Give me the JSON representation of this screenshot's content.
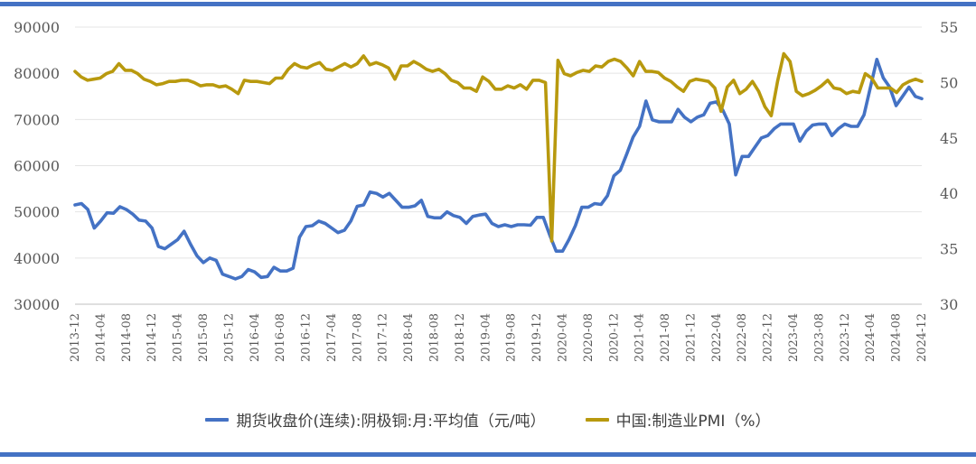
{
  "chart_data": {
    "type": "line",
    "title": "",
    "xlabel": "",
    "x_tick_labels": [
      "2013-12",
      "2014-04",
      "2014-08",
      "2014-12",
      "2015-04",
      "2015-08",
      "2015-12",
      "2016-04",
      "2016-08",
      "2016-12",
      "2017-04",
      "2017-08",
      "2017-12",
      "2018-04",
      "2018-08",
      "2018-12",
      "2019-04",
      "2019-08",
      "2019-12",
      "2020-04",
      "2020-08",
      "2020-12",
      "2021-04",
      "2021-08",
      "2021-12",
      "2022-04",
      "2022-08",
      "2022-12",
      "2023-04",
      "2023-08",
      "2023-12",
      "2024-04",
      "2024-08",
      "2024-12"
    ],
    "x_start": "2013-12",
    "x_end": "2024-12",
    "y_left": {
      "lim": [
        30000,
        90000
      ],
      "ticks": [
        "30000",
        "40000",
        "50000",
        "60000",
        "70000",
        "80000",
        "90000"
      ]
    },
    "y_right": {
      "lim": [
        30,
        55
      ],
      "ticks": [
        "30",
        "35",
        "40",
        "45",
        "50",
        "55"
      ]
    },
    "grid": "horizontal",
    "legend_position": "bottom",
    "series": [
      {
        "name": "期货收盘价(连续):阴极铜:月:平均值（元/吨）",
        "axis": "left",
        "color": "#4472c4",
        "values": [
          51500,
          51800,
          50500,
          46500,
          48000,
          49800,
          49700,
          51100,
          50500,
          49500,
          48200,
          48000,
          46500,
          42500,
          42000,
          43000,
          44000,
          45800,
          43000,
          40500,
          39000,
          40000,
          39500,
          36500,
          36000,
          35500,
          36000,
          37500,
          37000,
          35800,
          36000,
          38000,
          37200,
          37200,
          37800,
          44500,
          46800,
          47000,
          48000,
          47500,
          46500,
          45500,
          46000,
          48000,
          51200,
          51500,
          54300,
          54000,
          53200,
          54000,
          52500,
          51000,
          51000,
          51300,
          52500,
          49000,
          48700,
          48700,
          50000,
          49200,
          48800,
          47500,
          49000,
          49300,
          49500,
          47500,
          46800,
          47200,
          46800,
          47200,
          47200,
          47100,
          48800,
          48800,
          45000,
          41500,
          41500,
          44000,
          47000,
          51000,
          51000,
          51800,
          51600,
          53500,
          57800,
          59000,
          62500,
          66200,
          68500,
          74000,
          69900,
          69500,
          69500,
          69500,
          72200,
          70500,
          69500,
          70500,
          71000,
          73500,
          73800,
          72000,
          69000,
          58000,
          62000,
          62000,
          64000,
          66000,
          66500,
          68000,
          69000,
          69000,
          69000,
          65300,
          67500,
          68800,
          69000,
          69000,
          66500,
          68000,
          69000,
          68500,
          68500,
          71000,
          77000,
          83000,
          79000,
          77000,
          73000,
          75000,
          77000,
          75000,
          74500
        ]
      },
      {
        "name": "中国:制造业PMI（%）",
        "axis": "right",
        "color": "#b8990e",
        "values": [
          51.0,
          50.5,
          50.2,
          50.3,
          50.4,
          50.8,
          51.0,
          51.7,
          51.1,
          51.1,
          50.8,
          50.3,
          50.1,
          49.8,
          49.9,
          50.1,
          50.1,
          50.2,
          50.2,
          50.0,
          49.7,
          49.8,
          49.8,
          49.6,
          49.7,
          49.4,
          49.0,
          50.2,
          50.1,
          50.1,
          50.0,
          49.9,
          50.4,
          50.4,
          51.2,
          51.7,
          51.4,
          51.3,
          51.6,
          51.8,
          51.2,
          51.1,
          51.4,
          51.7,
          51.4,
          51.7,
          52.4,
          51.6,
          51.8,
          51.6,
          51.3,
          50.3,
          51.5,
          51.5,
          51.9,
          51.6,
          51.2,
          51.0,
          51.2,
          50.8,
          50.2,
          50.0,
          49.5,
          49.5,
          49.2,
          50.5,
          50.1,
          49.4,
          49.4,
          49.7,
          49.5,
          49.8,
          49.4,
          50.2,
          50.2,
          50.0,
          35.7,
          52.0,
          50.8,
          50.6,
          50.9,
          51.1,
          51.0,
          51.5,
          51.4,
          51.9,
          52.1,
          51.9,
          51.3,
          50.6,
          51.9,
          51.0,
          51.0,
          50.9,
          50.4,
          50.1,
          49.6,
          49.2,
          50.1,
          50.3,
          50.2,
          50.1,
          49.5,
          47.4,
          49.6,
          50.2,
          49.0,
          49.4,
          50.1,
          49.2,
          47.8,
          47.0,
          50.1,
          52.6,
          51.9,
          49.2,
          48.8,
          49.0,
          49.3,
          49.7,
          50.2,
          49.5,
          49.4,
          49.0,
          49.2,
          49.1,
          50.8,
          50.4,
          49.5,
          49.5,
          49.5,
          49.1,
          49.8,
          50.1,
          50.3,
          50.1
        ]
      }
    ]
  }
}
